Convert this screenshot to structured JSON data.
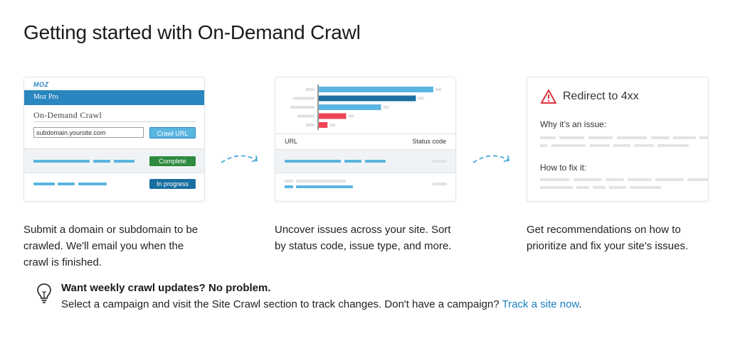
{
  "page_title": "Getting started with On-Demand Crawl",
  "card1": {
    "logo": "MOZ",
    "product": "Moz Pro",
    "heading": "On-Demand Crawl",
    "url_value": "subdomain.yoursite.com",
    "crawl_button": "Crawl URL",
    "status_complete": "Complete",
    "status_in_progress": "In progress",
    "colors": {
      "blue": "#2a86bf",
      "green": "#2e8b3f",
      "darkblue": "#1a6fa0"
    }
  },
  "card2": {
    "col_url": "URL",
    "col_status": "Status code",
    "bars": [
      {
        "value": 0.92,
        "color": "#5ab5e0"
      },
      {
        "value": 0.78,
        "color": "#1a6fa0"
      },
      {
        "value": 0.5,
        "color": "#5ab5e0"
      },
      {
        "value": 0.22,
        "color": "#ef4456"
      },
      {
        "value": 0.07,
        "color": "#ef4456"
      }
    ]
  },
  "card3": {
    "heading": "Redirect to 4xx",
    "why": "Why it’s an issue:",
    "how": "How to fix it:"
  },
  "captions": [
    "Submit a domain or subdomain to be crawled. We'll email you when the crawl is finished.",
    "Uncover issues across your site. Sort by status code, issue type, and more.",
    "Get recommendations on how to prioritize and fix your site's issues."
  ],
  "tip": {
    "icon": "lightbulb-icon",
    "title": "Want weekly crawl updates? No problem.",
    "text": "Select a campaign and visit the Site Crawl section to track changes. Don't have a campaign?",
    "link": "Track a site now",
    "suffix": "."
  }
}
